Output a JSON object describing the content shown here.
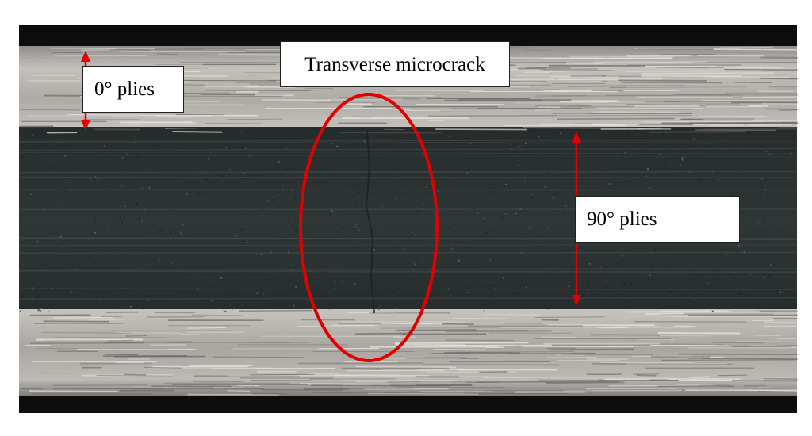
{
  "labels": {
    "zero_plies": "0° plies",
    "microcrack": "Transverse microcrack",
    "ninety_plies": "90° plies"
  },
  "colors": {
    "annotation": "#e00000",
    "outer_ply": "#b8b4b0",
    "inner_ply": "#2b3232",
    "background": "#0c0d0c",
    "page": "#ffffff"
  }
}
